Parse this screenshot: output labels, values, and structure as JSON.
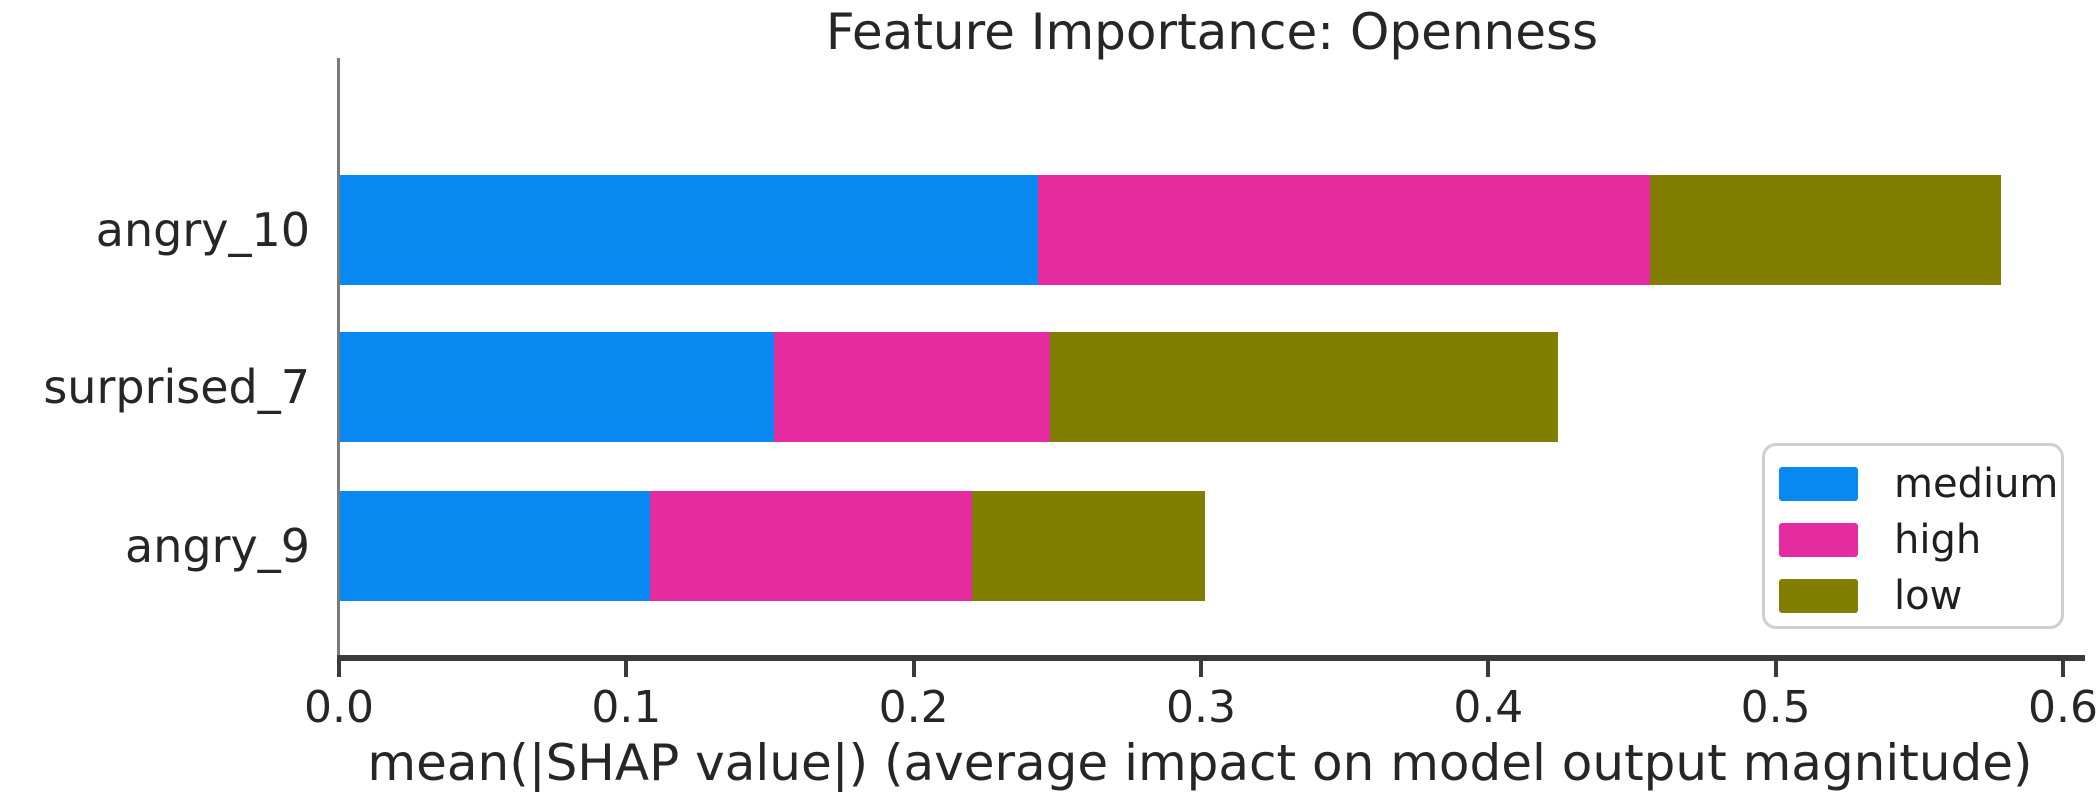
{
  "chart_data": {
    "type": "bar",
    "orientation": "horizontal",
    "stacked": true,
    "title": "Feature Importance: Openness",
    "xlabel": "mean(|SHAP value|) (average impact on model output magnitude)",
    "ylabel": "",
    "categories": [
      "angry_10",
      "surprised_7",
      "angry_9"
    ],
    "series": [
      {
        "name": "medium",
        "color": "#0889f2",
        "values": [
          0.243,
          0.151,
          0.108
        ]
      },
      {
        "name": "high",
        "color": "#e62ba1",
        "values": [
          0.213,
          0.096,
          0.112
        ]
      },
      {
        "name": "low",
        "color": "#827e02",
        "values": [
          0.122,
          0.177,
          0.081
        ]
      }
    ],
    "bar_totals": [
      0.578,
      0.424,
      0.301
    ],
    "xlim": [
      0.0,
      0.6
    ],
    "xtick_values": [
      0.0,
      0.1,
      0.2,
      0.3,
      0.4,
      0.5,
      0.6
    ],
    "xtick_labels": [
      "0.0",
      "0.1",
      "0.2",
      "0.3",
      "0.4",
      "0.5",
      "0.6"
    ],
    "grid": false,
    "legend": {
      "position": "lower right",
      "entries": [
        {
          "label": "medium",
          "color": "#0889f2"
        },
        {
          "label": "high",
          "color": "#e62ba1"
        },
        {
          "label": "low",
          "color": "#827e02"
        }
      ]
    }
  },
  "colors": {
    "background": "#ffffff",
    "text": "#262626",
    "axis": "#3b3b3b",
    "legend_border": "#cfcfcf"
  }
}
